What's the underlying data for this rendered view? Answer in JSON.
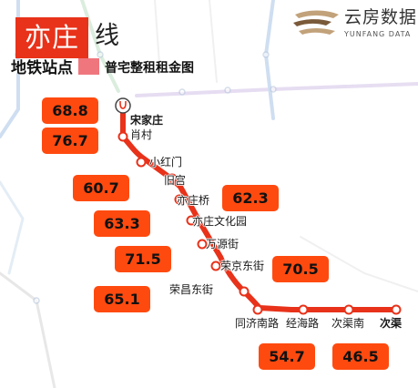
{
  "title": {
    "line_name": "亦庄",
    "suffix": "线",
    "subtitle_left": "地铁站点",
    "subtitle_right": "普宅整租租金图"
  },
  "logo": {
    "name": "云房数据",
    "sub": "YUNFANG DATA"
  },
  "colors": {
    "line": "#e8321a",
    "title_box": "#e8321a",
    "price_box": "#ff4a0f",
    "legend_square": "#f0767e"
  },
  "stations": [
    {
      "name": "宋家庄",
      "terminal": true
    },
    {
      "name": "肖村",
      "terminal": false
    },
    {
      "name": "小红门",
      "terminal": false
    },
    {
      "name": "旧宫",
      "terminal": false
    },
    {
      "name": "亦庄桥",
      "terminal": false
    },
    {
      "name": "亦庄文化园",
      "terminal": false
    },
    {
      "name": "万源街",
      "terminal": false
    },
    {
      "name": "荣京东街",
      "terminal": false
    },
    {
      "name": "荣昌东街",
      "terminal": false
    },
    {
      "name": "同济南路",
      "terminal": false
    },
    {
      "name": "经海路",
      "terminal": false
    },
    {
      "name": "次渠南",
      "terminal": false
    },
    {
      "name": "次渠",
      "terminal": true
    }
  ],
  "rents": [
    {
      "station": "宋家庄",
      "value": "68.8"
    },
    {
      "station": "肖村",
      "value": "76.7"
    },
    {
      "station": "小红门",
      "value": "60.7"
    },
    {
      "station": "亦庄桥",
      "value": "62.3"
    },
    {
      "station": "亦庄文化园",
      "value": "63.3"
    },
    {
      "station": "万源街",
      "value": "71.5"
    },
    {
      "station": "荣京东街",
      "value": "70.5"
    },
    {
      "station": "荣昌东街",
      "value": "65.1"
    },
    {
      "station": "同济南路",
      "value": "54.7"
    },
    {
      "station": "次渠",
      "value": "46.5"
    }
  ]
}
